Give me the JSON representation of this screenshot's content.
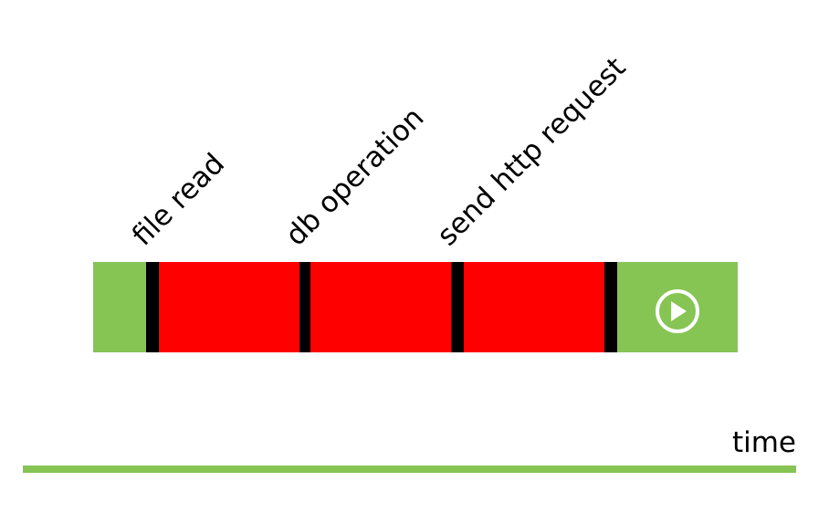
{
  "operations": [
    {
      "label": "file read"
    },
    {
      "label": "db operation"
    },
    {
      "label": "send http request"
    }
  ],
  "axis": {
    "label": "time"
  },
  "colors": {
    "idle": "#86c454",
    "blocked": "#ff0000",
    "separator": "#000000",
    "axis": "#86c454",
    "play_icon": "#ffffff"
  },
  "icons": {
    "end_marker": "play-circle-icon"
  }
}
